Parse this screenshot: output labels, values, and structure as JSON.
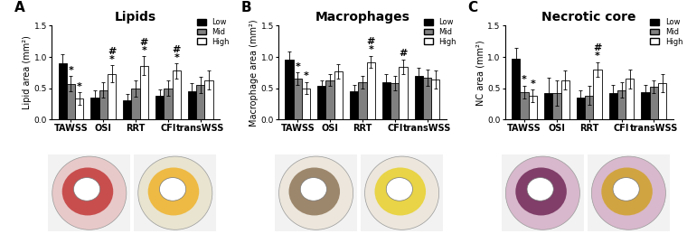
{
  "chart_data": [
    {
      "type": "bar",
      "panel_label": "A",
      "title": "Lipids",
      "y_label": "Lipid area (mm²)",
      "categories": [
        "TAWSS",
        "OSI",
        "RRT",
        "CFI",
        "transWSS"
      ],
      "series": [
        {
          "name": "Low",
          "color": "#000000",
          "values": [
            0.9,
            0.35,
            0.3,
            0.38,
            0.45
          ],
          "errors": [
            0.15,
            0.12,
            0.1,
            0.1,
            0.13
          ]
        },
        {
          "name": "Mid",
          "color": "#808080",
          "values": [
            0.57,
            0.47,
            0.5,
            0.5,
            0.55
          ],
          "errors": [
            0.12,
            0.12,
            0.13,
            0.12,
            0.13
          ]
        },
        {
          "name": "High",
          "color": "#ffffff",
          "values": [
            0.33,
            0.73,
            0.86,
            0.78,
            0.63
          ],
          "errors": [
            0.1,
            0.14,
            0.15,
            0.12,
            0.15
          ]
        }
      ],
      "annotations": [
        {
          "series": "Mid",
          "category": "TAWSS",
          "text": "*"
        },
        {
          "series": "High",
          "category": "TAWSS",
          "text": "*"
        },
        {
          "series": "High",
          "category": "OSI",
          "text": "*"
        },
        {
          "series": "High",
          "category": "OSI",
          "text": "#"
        },
        {
          "series": "High",
          "category": "RRT",
          "text": "*"
        },
        {
          "series": "High",
          "category": "RRT",
          "text": "#"
        },
        {
          "series": "High",
          "category": "CFI",
          "text": "*"
        },
        {
          "series": "High",
          "category": "CFI",
          "text": "#"
        }
      ],
      "ylim": [
        0,
        1.5
      ],
      "yticks": [
        {
          "value": 0,
          "label": "0.0"
        },
        {
          "value": 0.5,
          "label": "0.5"
        },
        {
          "value": 1.0,
          "label": "1.0"
        },
        {
          "value": 1.5,
          "label": "1.5"
        }
      ],
      "legend": "upper right"
    },
    {
      "type": "bar",
      "panel_label": "B",
      "title": "Macrophages",
      "y_label": "Macrophage area (mm²)",
      "categories": [
        "TAWSS",
        "OSI",
        "RRT",
        "CFI",
        "transWSS"
      ],
      "series": [
        {
          "name": "Low",
          "color": "#000000",
          "values": [
            0.95,
            0.53,
            0.45,
            0.6,
            0.7
          ],
          "errors": [
            0.13,
            0.1,
            0.1,
            0.12,
            0.13
          ]
        },
        {
          "name": "Mid",
          "color": "#808080",
          "values": [
            0.65,
            0.63,
            0.6,
            0.58,
            0.67
          ],
          "errors": [
            0.1,
            0.1,
            0.1,
            0.12,
            0.13
          ]
        },
        {
          "name": "High",
          "color": "#ffffff",
          "values": [
            0.5,
            0.77,
            0.92,
            0.84,
            0.64
          ],
          "errors": [
            0.1,
            0.12,
            0.1,
            0.12,
            0.15
          ]
        }
      ],
      "annotations": [
        {
          "series": "Mid",
          "category": "TAWSS",
          "text": "*"
        },
        {
          "series": "High",
          "category": "TAWSS",
          "text": "*"
        },
        {
          "series": "High",
          "category": "RRT",
          "text": "*"
        },
        {
          "series": "High",
          "category": "RRT",
          "text": "#"
        },
        {
          "series": "High",
          "category": "CFI",
          "text": "#"
        }
      ],
      "ylim": [
        0,
        1.5
      ],
      "yticks": [
        {
          "value": 0,
          "label": "0.0"
        },
        {
          "value": 0.5,
          "label": "0.5"
        },
        {
          "value": 1.0,
          "label": "1.0"
        },
        {
          "value": 1.5,
          "label": "1.5"
        }
      ],
      "legend": "upper right"
    },
    {
      "type": "bar",
      "panel_label": "C",
      "title": "Necrotic core",
      "y_label": "NC area (mm²)",
      "categories": [
        "TAWSS",
        "OSI",
        "RRT",
        "CFI",
        "transWSS"
      ],
      "series": [
        {
          "name": "Low",
          "color": "#000000",
          "values": [
            0.97,
            0.42,
            0.35,
            0.42,
            0.43
          ],
          "errors": [
            0.17,
            0.25,
            0.12,
            0.13,
            0.12
          ]
        },
        {
          "name": "Mid",
          "color": "#808080",
          "values": [
            0.44,
            0.42,
            0.38,
            0.47,
            0.52
          ],
          "errors": [
            0.1,
            0.2,
            0.15,
            0.12,
            0.1
          ]
        },
        {
          "name": "High",
          "color": "#ffffff",
          "values": [
            0.38,
            0.63,
            0.8,
            0.65,
            0.58
          ],
          "errors": [
            0.1,
            0.15,
            0.12,
            0.15,
            0.15
          ]
        }
      ],
      "annotations": [
        {
          "series": "Mid",
          "category": "TAWSS",
          "text": "*"
        },
        {
          "series": "High",
          "category": "TAWSS",
          "text": "*"
        },
        {
          "series": "High",
          "category": "RRT",
          "text": "*"
        },
        {
          "series": "High",
          "category": "RRT",
          "text": "#"
        }
      ],
      "ylim": [
        0,
        1.5
      ],
      "yticks": [
        {
          "value": 0,
          "label": "0.0"
        },
        {
          "value": 0.5,
          "label": "0.5"
        },
        {
          "value": 1.0,
          "label": "1.0"
        },
        {
          "value": 1.5,
          "label": "1.5"
        }
      ],
      "legend": "upper right"
    }
  ]
}
